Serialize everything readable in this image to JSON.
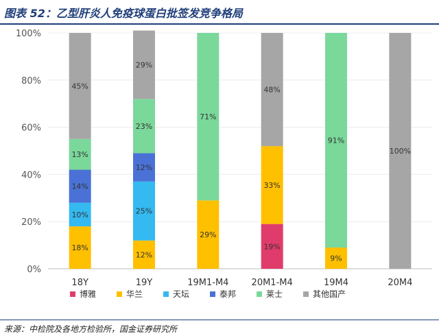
{
  "title": "图表 52：乙型肝炎人免疫球蛋白批签发竞争格局",
  "source": "来源：中检院及各地方检验所，国金证券研究所",
  "chart_data": {
    "type": "bar",
    "stacked": true,
    "percent": true,
    "categories": [
      "18Y",
      "19Y",
      "19M1-M4",
      "20M1-M4",
      "19M4",
      "20M4"
    ],
    "ylim": [
      0,
      100
    ],
    "yticks": [
      "0%",
      "20%",
      "40%",
      "60%",
      "80%",
      "100%"
    ],
    "legend_position": "bottom",
    "series": [
      {
        "name": "博雅",
        "color": "#e03c6b",
        "values": [
          0,
          0,
          0,
          19,
          0,
          0
        ],
        "labels": [
          "",
          "",
          "",
          "19%",
          "",
          ""
        ]
      },
      {
        "name": "华兰",
        "color": "#ffc000",
        "values": [
          18,
          12,
          29,
          33,
          9,
          0
        ],
        "labels": [
          "18%",
          "12%",
          "29%",
          "33%",
          "9%",
          ""
        ]
      },
      {
        "name": "天坛",
        "color": "#34b9f0",
        "values": [
          10,
          25,
          0,
          0,
          0,
          0
        ],
        "labels": [
          "10%",
          "25%",
          "",
          "",
          "",
          ""
        ]
      },
      {
        "name": "泰邦",
        "color": "#4a72d6",
        "values": [
          14,
          12,
          0,
          0,
          0,
          0
        ],
        "labels": [
          "14%",
          "12%",
          "",
          "",
          "",
          ""
        ]
      },
      {
        "name": "莱士",
        "color": "#7ad89a",
        "values": [
          13,
          23,
          71,
          0,
          91,
          0
        ],
        "labels": [
          "13%",
          "23%",
          "71%",
          "",
          "91%",
          ""
        ]
      },
      {
        "name": "其他国产",
        "color": "#a6a6a6",
        "values": [
          45,
          29,
          0,
          48,
          0,
          100
        ],
        "labels": [
          "45%",
          "29%",
          "",
          "48%",
          "",
          "100%"
        ]
      }
    ]
  }
}
